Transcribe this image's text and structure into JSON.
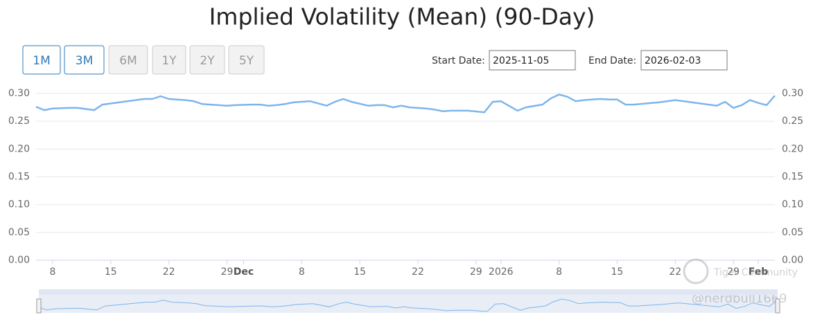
{
  "chart_data": {
    "type": "line",
    "title": "Implied Volatility (Mean) (90-Day)",
    "range_buttons": [
      {
        "label": "1M",
        "enabled": true
      },
      {
        "label": "3M",
        "enabled": true
      },
      {
        "label": "6M",
        "enabled": false
      },
      {
        "label": "1Y",
        "enabled": false
      },
      {
        "label": "2Y",
        "enabled": false
      },
      {
        "label": "5Y",
        "enabled": false
      }
    ],
    "start_date_label": "Start Date:",
    "start_date": "2025-11-05",
    "end_date_label": "End Date:",
    "end_date": "2026-02-03",
    "watermark": [
      "Tiger Community",
      "@nerdbull1669"
    ],
    "x": [
      "2025-11-06",
      "2025-11-07",
      "2025-11-08",
      "2025-11-10",
      "2025-11-11",
      "2025-11-13",
      "2025-11-14",
      "2025-11-16",
      "2025-11-17",
      "2025-11-19",
      "2025-11-20",
      "2025-11-21",
      "2025-11-22",
      "2025-11-24",
      "2025-11-25",
      "2025-11-26",
      "2025-11-27",
      "2025-11-29",
      "2025-11-30",
      "2025-12-02",
      "2025-12-03",
      "2025-12-04",
      "2025-12-05",
      "2025-12-06",
      "2025-12-07",
      "2025-12-09",
      "2025-12-11",
      "2025-12-12",
      "2025-12-13",
      "2025-12-14",
      "2025-12-16",
      "2025-12-17",
      "2025-12-18",
      "2025-12-19",
      "2025-12-20",
      "2025-12-21",
      "2025-12-23",
      "2025-12-24",
      "2025-12-25",
      "2025-12-26",
      "2025-12-28",
      "2025-12-30",
      "2025-12-31",
      "2026-01-01",
      "2026-01-03",
      "2026-01-04",
      "2026-01-06",
      "2026-01-07",
      "2026-01-08",
      "2026-01-09",
      "2026-01-10",
      "2026-01-11",
      "2026-01-12",
      "2026-01-13",
      "2026-01-14",
      "2026-01-15",
      "2026-01-16",
      "2026-01-17",
      "2026-01-20",
      "2026-01-22",
      "2026-01-24",
      "2026-01-27",
      "2026-01-28",
      "2026-01-29",
      "2026-01-30",
      "2026-01-31",
      "2026-02-01",
      "2026-02-02",
      "2026-02-03"
    ],
    "series": [
      {
        "color": "#7cb5ec",
        "values": [
          0.276,
          0.27,
          0.273,
          0.274,
          0.274,
          0.27,
          0.28,
          0.284,
          0.286,
          0.29,
          0.29,
          0.295,
          0.29,
          0.288,
          0.286,
          0.281,
          0.28,
          0.278,
          0.279,
          0.28,
          0.28,
          0.278,
          0.279,
          0.281,
          0.284,
          0.286,
          0.278,
          0.285,
          0.29,
          0.285,
          0.278,
          0.279,
          0.279,
          0.275,
          0.278,
          0.275,
          0.273,
          0.271,
          0.268,
          0.269,
          0.269,
          0.266,
          0.285,
          0.286,
          0.269,
          0.275,
          0.28,
          0.291,
          0.298,
          0.294,
          0.286,
          0.288,
          0.289,
          0.29,
          0.289,
          0.289,
          0.28,
          0.28,
          0.284,
          0.288,
          0.284,
          0.278,
          0.285,
          0.274,
          0.279,
          0.288,
          0.283,
          0.279,
          0.296
        ]
      }
    ],
    "xlim": [
      "2025-11-06",
      "2026-02-03"
    ],
    "xticks": [
      {
        "value": "2025-11-08",
        "label": "8"
      },
      {
        "value": "2025-11-15",
        "label": "15"
      },
      {
        "value": "2025-11-22",
        "label": "22"
      },
      {
        "value": "2025-11-29",
        "label": "29"
      },
      {
        "value": "2025-12-01",
        "label": "Dec"
      },
      {
        "value": "2025-12-08",
        "label": "8"
      },
      {
        "value": "2025-12-15",
        "label": "15"
      },
      {
        "value": "2025-12-22",
        "label": "22"
      },
      {
        "value": "2025-12-29",
        "label": "29"
      },
      {
        "value": "2026-01-01",
        "label": "2026"
      },
      {
        "value": "2026-01-08",
        "label": "8"
      },
      {
        "value": "2026-01-15",
        "label": "15"
      },
      {
        "value": "2026-01-22",
        "label": "22"
      },
      {
        "value": "2026-01-29",
        "label": "29"
      },
      {
        "value": "2026-02-01",
        "label": "Feb"
      }
    ],
    "ylim": [
      0,
      0.3
    ],
    "yticks": [
      {
        "value": 0,
        "label": "0.00"
      },
      {
        "value": 0.05,
        "label": "0.05"
      },
      {
        "value": 0.1,
        "label": "0.10"
      },
      {
        "value": 0.15,
        "label": "0.15"
      },
      {
        "value": 0.2,
        "label": "0.20"
      },
      {
        "value": 0.25,
        "label": "0.25"
      },
      {
        "value": 0.3,
        "label": "0.30"
      }
    ],
    "grid": true,
    "mirror_y_axis": true,
    "navigator": true
  }
}
